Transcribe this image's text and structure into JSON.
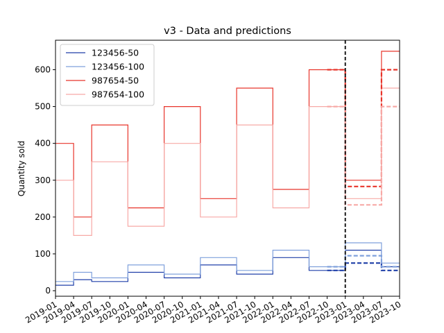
{
  "chart_data": {
    "type": "line",
    "title": "v3 - Data and predictions",
    "xlabel": "",
    "ylabel": "Quantity sold",
    "ylim": [
      -15,
      680
    ],
    "y_ticks": [
      0,
      100,
      200,
      300,
      400,
      500,
      600
    ],
    "x_ticks": [
      "2019-01",
      "2019-04",
      "2019-07",
      "2019-10",
      "2020-01",
      "2020-04",
      "2020-07",
      "2020-10",
      "2021-01",
      "2021-04",
      "2021-07",
      "2021-10",
      "2022-01",
      "2022-04",
      "2022-07",
      "2022-10",
      "2023-01",
      "2023-04",
      "2023-07",
      "2023-10"
    ],
    "x_range": [
      "2019-01",
      "2023-10"
    ],
    "grid": false,
    "legend_placement": "upper-left",
    "cutoff": "2023-01",
    "series": [
      {
        "name": "123456-50",
        "color": "#1f3fa8",
        "step": "post",
        "points": [
          [
            "2019-01",
            15
          ],
          [
            "2019-04",
            30
          ],
          [
            "2019-07",
            25
          ],
          [
            "2019-10",
            25
          ],
          [
            "2020-01",
            50
          ],
          [
            "2020-04",
            50
          ],
          [
            "2020-07",
            35
          ],
          [
            "2020-10",
            35
          ],
          [
            "2021-01",
            70
          ],
          [
            "2021-04",
            70
          ],
          [
            "2021-07",
            45
          ],
          [
            "2021-10",
            45
          ],
          [
            "2022-01",
            90
          ],
          [
            "2022-04",
            90
          ],
          [
            "2022-07",
            55
          ],
          [
            "2022-10",
            55
          ],
          [
            "2023-01",
            110
          ],
          [
            "2023-04",
            110
          ],
          [
            "2023-07",
            65
          ],
          [
            "2023-10",
            65
          ]
        ]
      },
      {
        "name": "123456-100",
        "color": "#7fa0dc",
        "step": "post",
        "points": [
          [
            "2019-01",
            25
          ],
          [
            "2019-04",
            50
          ],
          [
            "2019-07",
            35
          ],
          [
            "2019-10",
            35
          ],
          [
            "2020-01",
            70
          ],
          [
            "2020-04",
            70
          ],
          [
            "2020-07",
            45
          ],
          [
            "2020-10",
            45
          ],
          [
            "2021-01",
            90
          ],
          [
            "2021-04",
            90
          ],
          [
            "2021-07",
            55
          ],
          [
            "2021-10",
            55
          ],
          [
            "2022-01",
            110
          ],
          [
            "2022-04",
            110
          ],
          [
            "2022-07",
            65
          ],
          [
            "2022-10",
            65
          ],
          [
            "2023-01",
            130
          ],
          [
            "2023-04",
            130
          ],
          [
            "2023-07",
            75
          ],
          [
            "2023-10",
            75
          ]
        ]
      },
      {
        "name": "987654-50",
        "color": "#e8342a",
        "step": "post",
        "points": [
          [
            "2019-01",
            400
          ],
          [
            "2019-04",
            200
          ],
          [
            "2019-07",
            450
          ],
          [
            "2019-10",
            450
          ],
          [
            "2020-01",
            225
          ],
          [
            "2020-04",
            225
          ],
          [
            "2020-07",
            500
          ],
          [
            "2020-10",
            500
          ],
          [
            "2021-01",
            250
          ],
          [
            "2021-04",
            250
          ],
          [
            "2021-07",
            550
          ],
          [
            "2021-10",
            550
          ],
          [
            "2022-01",
            275
          ],
          [
            "2022-04",
            275
          ],
          [
            "2022-07",
            600
          ],
          [
            "2022-10",
            600
          ],
          [
            "2023-01",
            300
          ],
          [
            "2023-04",
            300
          ],
          [
            "2023-07",
            650
          ],
          [
            "2023-10",
            650
          ]
        ]
      },
      {
        "name": "987654-100",
        "color": "#f7a9a6",
        "step": "post",
        "points": [
          [
            "2019-01",
            300
          ],
          [
            "2019-04",
            150
          ],
          [
            "2019-07",
            350
          ],
          [
            "2019-10",
            350
          ],
          [
            "2020-01",
            175
          ],
          [
            "2020-04",
            175
          ],
          [
            "2020-07",
            400
          ],
          [
            "2020-10",
            400
          ],
          [
            "2021-01",
            200
          ],
          [
            "2021-04",
            200
          ],
          [
            "2021-07",
            450
          ],
          [
            "2021-10",
            450
          ],
          [
            "2022-01",
            225
          ],
          [
            "2022-04",
            225
          ],
          [
            "2022-07",
            500
          ],
          [
            "2022-10",
            500
          ],
          [
            "2023-01",
            250
          ],
          [
            "2023-04",
            250
          ],
          [
            "2023-07",
            550
          ],
          [
            "2023-10",
            550
          ]
        ]
      }
    ],
    "predictions": [
      {
        "color": "#1f3fa8",
        "points": [
          [
            "2022-10",
            55
          ],
          [
            "2023-01",
            75
          ],
          [
            "2023-04",
            75
          ],
          [
            "2023-07",
            55
          ],
          [
            "2023-10",
            55
          ]
        ]
      },
      {
        "color": "#7fa0dc",
        "points": [
          [
            "2022-10",
            65
          ],
          [
            "2023-01",
            95
          ],
          [
            "2023-04",
            95
          ],
          [
            "2023-07",
            65
          ],
          [
            "2023-10",
            65
          ]
        ]
      },
      {
        "color": "#e8342a",
        "points": [
          [
            "2022-10",
            600
          ],
          [
            "2023-01",
            283
          ],
          [
            "2023-04",
            283
          ],
          [
            "2023-07",
            600
          ],
          [
            "2023-10",
            600
          ]
        ]
      },
      {
        "color": "#f7a9a6",
        "points": [
          [
            "2022-10",
            500
          ],
          [
            "2023-01",
            233
          ],
          [
            "2023-04",
            233
          ],
          [
            "2023-07",
            500
          ],
          [
            "2023-10",
            500
          ]
        ]
      }
    ]
  }
}
